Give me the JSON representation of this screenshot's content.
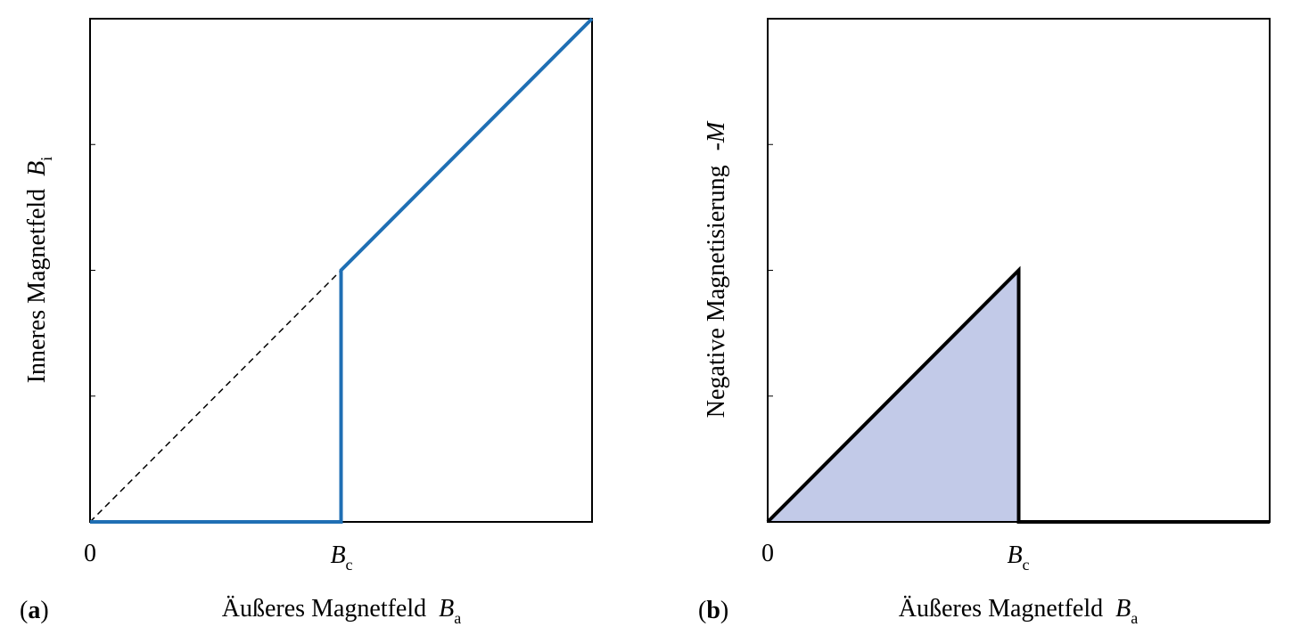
{
  "chart_data": [
    {
      "type": "line",
      "panel_label": "a",
      "xlabel": "Äußeres Magnetfeld",
      "xlabel_symbol": "B",
      "xlabel_subscript": "a",
      "ylabel": "Inneres Magnetfeld",
      "ylabel_symbol": "B",
      "ylabel_subscript": "i",
      "x_ticks": [
        {
          "value": 0,
          "label": "0"
        },
        {
          "value": 1,
          "label": "B",
          "subscript": "c"
        }
      ],
      "xlim": [
        0,
        2
      ],
      "ylim": [
        0,
        2
      ],
      "y_minor_ticks": [
        0.5,
        1,
        1.5
      ],
      "series": [
        {
          "style": "solid",
          "color": "#1f6fb4",
          "x": [
            0,
            1,
            1,
            2
          ],
          "y": [
            0,
            0,
            1,
            2
          ]
        },
        {
          "style": "dashed",
          "color": "#000000",
          "x": [
            0,
            1
          ],
          "y": [
            0,
            1
          ]
        }
      ],
      "grid": false
    },
    {
      "type": "area",
      "panel_label": "b",
      "xlabel": "Äußeres Magnetfeld",
      "xlabel_symbol": "B",
      "xlabel_subscript": "a",
      "ylabel": "Negative Magnetisierung",
      "ylabel_symbol": "-M",
      "x_ticks": [
        {
          "value": 0,
          "label": "0"
        },
        {
          "value": 1,
          "label": "B",
          "subscript": "c"
        }
      ],
      "xlim": [
        0,
        2
      ],
      "ylim": [
        0,
        2
      ],
      "y_minor_ticks": [
        0.5,
        1,
        1.5
      ],
      "series": [
        {
          "style": "solid",
          "color": "#000000",
          "fill": "#c2cae8",
          "x": [
            0,
            1,
            1,
            2
          ],
          "y": [
            0,
            1,
            0,
            0
          ]
        }
      ],
      "grid": false
    }
  ]
}
